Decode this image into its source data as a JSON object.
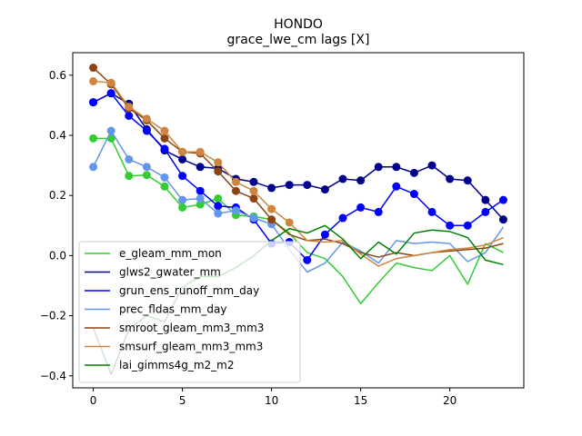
{
  "chart_data": {
    "type": "line",
    "title": "HONDO",
    "subtitle": "grace_lwe_cm lags [X]",
    "xlabel": "",
    "ylabel": "",
    "xlim": [
      -1.15,
      24.15
    ],
    "ylim": [
      -0.44,
      0.675
    ],
    "xticks": [
      0,
      5,
      10,
      15,
      20
    ],
    "yticks": [
      -0.4,
      -0.2,
      0.0,
      0.2,
      0.4,
      0.6
    ],
    "ytick_labels": [
      "−0.4",
      "−0.2",
      "0.0",
      "0.2",
      "0.4",
      "0.6"
    ],
    "grid": false,
    "legend_position": "lower-left",
    "x": [
      0,
      1,
      2,
      3,
      4,
      5,
      6,
      7,
      8,
      9,
      10,
      11,
      12,
      13,
      14,
      15,
      16,
      17,
      18,
      19,
      20,
      21,
      22,
      23
    ],
    "series": [
      {
        "name": "e_gleam_mm_mon",
        "color": "#32cd32",
        "marker_until": 9,
        "values": [
          0.39,
          0.39,
          0.265,
          0.268,
          0.23,
          0.16,
          0.17,
          0.19,
          0.135,
          0.13,
          0.12,
          0.075,
          0.01,
          -0.01,
          -0.07,
          -0.16,
          -0.09,
          -0.025,
          -0.04,
          -0.05,
          0.0,
          -0.095,
          0.04,
          0.01
        ]
      },
      {
        "name": "glws2_gwater_mm",
        "color": "#00008b",
        "marker_until": 23,
        "values": [
          0.51,
          0.54,
          0.505,
          0.42,
          0.35,
          0.32,
          0.295,
          0.29,
          0.255,
          0.245,
          0.225,
          0.235,
          0.235,
          0.22,
          0.255,
          0.25,
          0.295,
          0.295,
          0.275,
          0.3,
          0.255,
          0.25,
          0.185,
          0.12
        ]
      },
      {
        "name": "grun_ens_runoff_mm_day",
        "color": "#0000ff",
        "marker_until": 23,
        "values": [
          0.51,
          0.54,
          0.465,
          0.415,
          0.355,
          0.265,
          0.215,
          0.165,
          0.16,
          0.12,
          0.04,
          0.045,
          -0.015,
          0.07,
          0.125,
          0.16,
          0.145,
          0.23,
          0.205,
          0.145,
          0.1,
          0.1,
          0.145,
          0.185
        ]
      },
      {
        "name": "prec_fldas_mm_day",
        "color": "#6495ed",
        "marker_until": 10,
        "values": [
          0.295,
          0.415,
          0.32,
          0.295,
          0.26,
          0.185,
          0.19,
          0.14,
          0.15,
          0.125,
          0.105,
          0.02,
          -0.055,
          -0.025,
          0.045,
          0.015,
          -0.025,
          0.05,
          0.04,
          0.045,
          0.04,
          -0.02,
          0.01,
          0.095
        ]
      },
      {
        "name": "smroot_gleam_mm3_mm3",
        "color": "#8b4513",
        "marker_until": 10,
        "values": [
          0.625,
          0.57,
          0.49,
          0.45,
          0.39,
          0.345,
          0.34,
          0.28,
          0.215,
          0.19,
          0.12,
          0.07,
          0.05,
          0.055,
          0.04,
          0.01,
          -0.005,
          0.01,
          0.0,
          0.01,
          0.015,
          0.02,
          0.025,
          0.04
        ]
      },
      {
        "name": "smsurf_gleam_mm3_mm3",
        "color": "#cd853f",
        "marker_until": 11,
        "values": [
          0.58,
          0.575,
          0.495,
          0.455,
          0.415,
          0.345,
          0.345,
          0.31,
          0.245,
          0.215,
          0.155,
          0.11,
          0.05,
          0.045,
          0.05,
          0.005,
          -0.035,
          -0.01,
          0.0,
          0.01,
          0.02,
          0.025,
          0.035,
          0.06
        ]
      },
      {
        "name": "lai_gimms4g_m2_m2",
        "color": "#008000",
        "marker_until": -1,
        "values": [
          -0.24,
          -0.395,
          -0.245,
          -0.2,
          -0.22,
          -0.105,
          -0.07,
          -0.07,
          -0.04,
          0.0,
          0.05,
          0.09,
          0.075,
          0.1,
          0.055,
          -0.01,
          0.045,
          0.005,
          0.075,
          0.085,
          0.08,
          0.06,
          -0.015,
          -0.03
        ]
      }
    ]
  }
}
